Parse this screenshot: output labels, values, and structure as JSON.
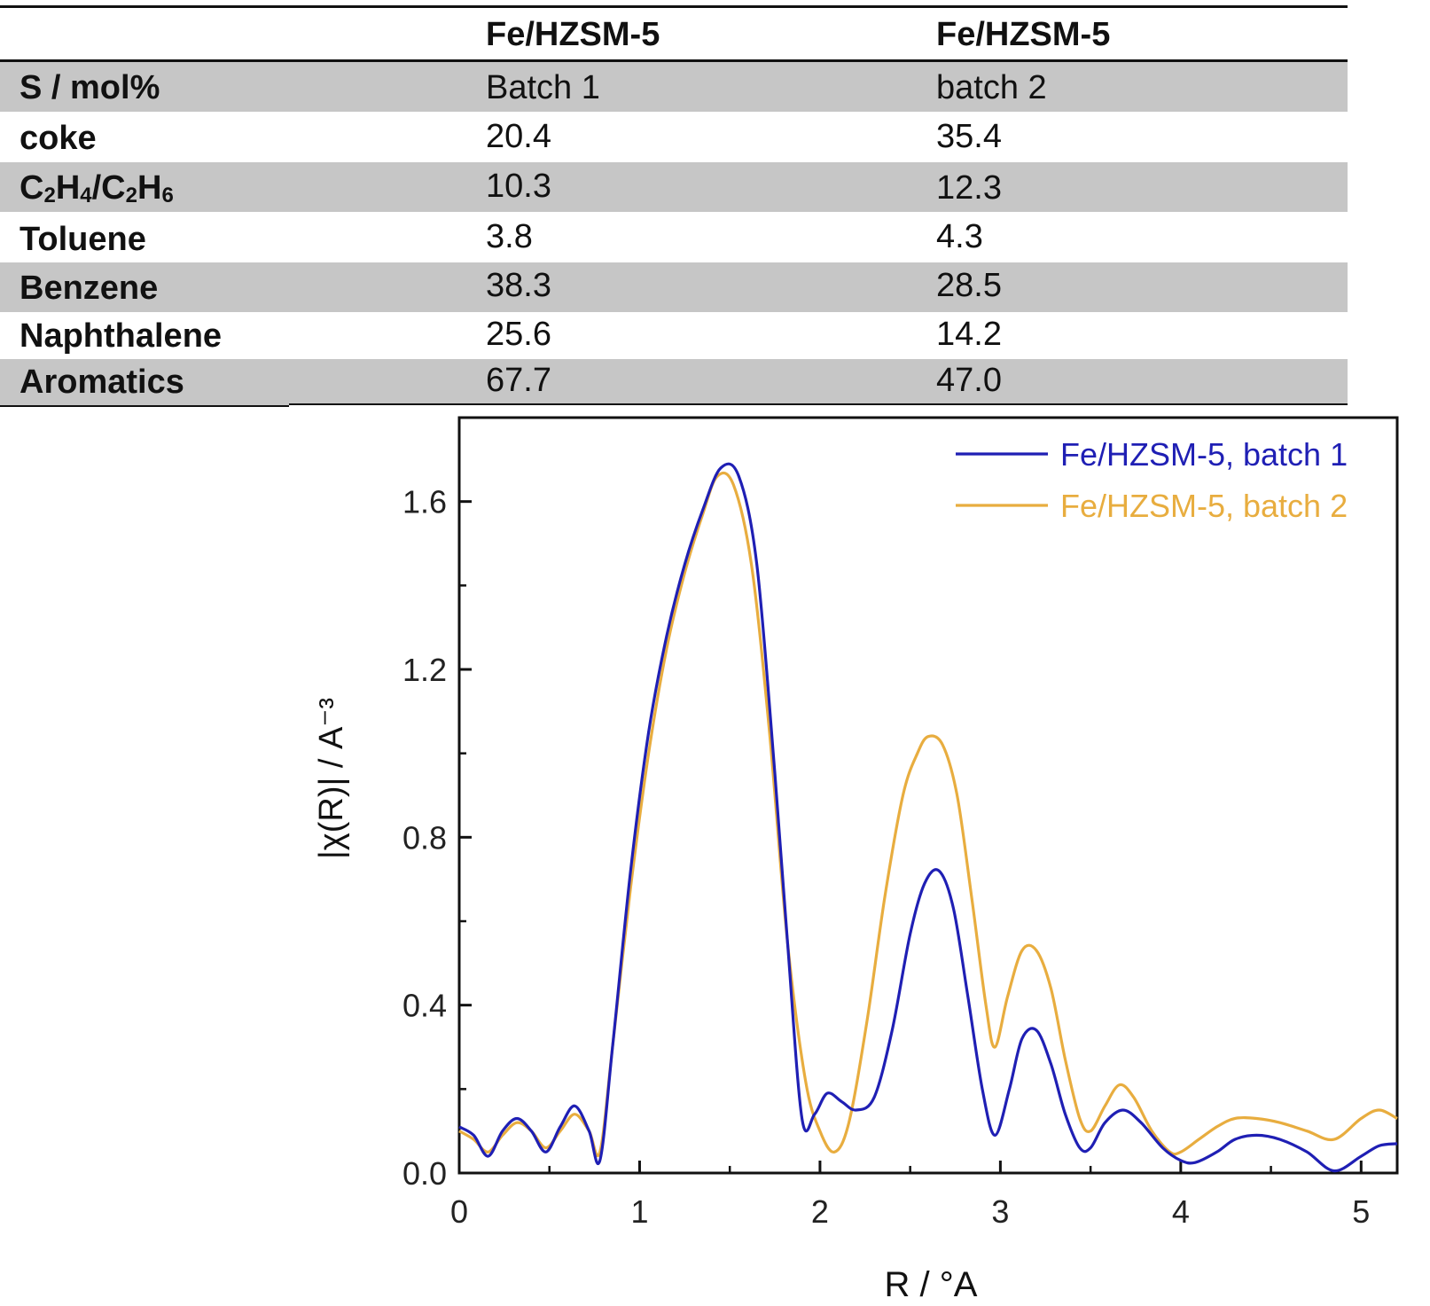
{
  "table": {
    "columns": [
      "",
      "Fe/HZSM-5",
      "Fe/HZSM-5"
    ],
    "rows": [
      {
        "label": "S / mol%",
        "batch1": "Batch 1",
        "batch2": "batch 2",
        "shaded": true
      },
      {
        "label": "coke",
        "batch1": "20.4",
        "batch2": "35.4",
        "shaded": false
      },
      {
        "label_parts": [
          "C",
          "2",
          "H",
          "4",
          "/C",
          "2",
          "H",
          "6"
        ],
        "batch1": "10.3",
        "batch2": "12.3",
        "shaded": true
      },
      {
        "label": "Toluene",
        "batch1": "3.8",
        "batch2": "4.3",
        "shaded": false
      },
      {
        "label": "Benzene",
        "batch1": "38.3",
        "batch2": "28.5",
        "shaded": true
      },
      {
        "label": "Naphthalene",
        "batch1": "25.6",
        "batch2": "14.2",
        "shaded": false
      },
      {
        "label": "Aromatics",
        "batch1": "67.7",
        "batch2": "47.0",
        "shaded": true
      }
    ]
  },
  "chart_data": {
    "type": "line",
    "title": "",
    "xlabel": "R / °A",
    "ylabel": "|χ(R)| / A⁻³",
    "xlim": [
      0,
      5.2
    ],
    "ylim": [
      0,
      1.8
    ],
    "xticks": [
      "0",
      "1",
      "2",
      "3",
      "4",
      "5"
    ],
    "yticks": [
      "0.0",
      "0.4",
      "0.8",
      "1.2",
      "1.6"
    ],
    "legend_position": "top-right",
    "grid": false,
    "series": [
      {
        "name": "Fe/HZSM-5, batch 1",
        "color": "#1f1fb4",
        "x": [
          0,
          0.08,
          0.16,
          0.24,
          0.32,
          0.4,
          0.48,
          0.56,
          0.64,
          0.72,
          0.78,
          0.85,
          0.95,
          1.05,
          1.15,
          1.25,
          1.35,
          1.45,
          1.55,
          1.65,
          1.75,
          1.82,
          1.9,
          1.97,
          2.04,
          2.12,
          2.2,
          2.3,
          2.4,
          2.5,
          2.58,
          2.66,
          2.74,
          2.82,
          2.9,
          2.97,
          3.05,
          3.12,
          3.2,
          3.28,
          3.36,
          3.44,
          3.5,
          3.58,
          3.68,
          3.78,
          3.9,
          4.0,
          4.08,
          4.2,
          4.3,
          4.42,
          4.55,
          4.7,
          4.85,
          5.0,
          5.1,
          5.2
        ],
        "y": [
          0.11,
          0.09,
          0.04,
          0.1,
          0.13,
          0.1,
          0.05,
          0.11,
          0.16,
          0.1,
          0.03,
          0.3,
          0.72,
          1.05,
          1.28,
          1.45,
          1.58,
          1.68,
          1.66,
          1.45,
          0.95,
          0.55,
          0.13,
          0.14,
          0.19,
          0.17,
          0.15,
          0.18,
          0.34,
          0.57,
          0.69,
          0.72,
          0.63,
          0.42,
          0.2,
          0.09,
          0.2,
          0.32,
          0.34,
          0.26,
          0.14,
          0.06,
          0.06,
          0.12,
          0.15,
          0.12,
          0.06,
          0.03,
          0.025,
          0.05,
          0.08,
          0.09,
          0.08,
          0.05,
          0.005,
          0.04,
          0.065,
          0.07
        ]
      },
      {
        "name": "Fe/HZSM-5, batch 2",
        "color": "#e8ad3f",
        "x": [
          0,
          0.08,
          0.16,
          0.24,
          0.32,
          0.4,
          0.48,
          0.56,
          0.64,
          0.72,
          0.78,
          0.85,
          0.95,
          1.05,
          1.15,
          1.25,
          1.35,
          1.43,
          1.52,
          1.62,
          1.72,
          1.82,
          1.92,
          2.0,
          2.08,
          2.16,
          2.26,
          2.36,
          2.46,
          2.54,
          2.6,
          2.68,
          2.76,
          2.84,
          2.92,
          2.97,
          3.04,
          3.12,
          3.2,
          3.28,
          3.36,
          3.44,
          3.5,
          3.58,
          3.66,
          3.74,
          3.84,
          3.94,
          4.0,
          4.1,
          4.2,
          4.3,
          4.42,
          4.55,
          4.7,
          4.85,
          5.0,
          5.1,
          5.2
        ],
        "y": [
          0.1,
          0.08,
          0.05,
          0.09,
          0.12,
          0.1,
          0.06,
          0.1,
          0.14,
          0.1,
          0.05,
          0.3,
          0.68,
          1.0,
          1.25,
          1.43,
          1.57,
          1.66,
          1.64,
          1.45,
          1.05,
          0.55,
          0.22,
          0.1,
          0.05,
          0.12,
          0.36,
          0.66,
          0.9,
          1.0,
          1.04,
          1.02,
          0.9,
          0.66,
          0.4,
          0.3,
          0.42,
          0.53,
          0.53,
          0.44,
          0.27,
          0.13,
          0.1,
          0.16,
          0.21,
          0.18,
          0.1,
          0.05,
          0.05,
          0.08,
          0.11,
          0.13,
          0.13,
          0.12,
          0.1,
          0.08,
          0.13,
          0.15,
          0.13
        ]
      }
    ]
  }
}
